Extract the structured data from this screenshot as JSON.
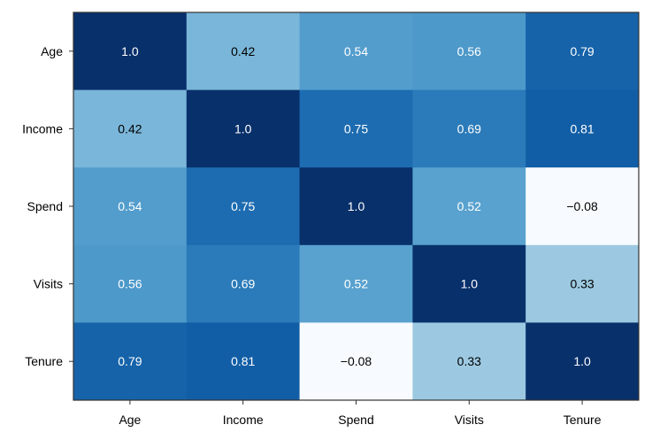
{
  "chart_data": {
    "type": "heatmap",
    "title": "",
    "xlabel": "",
    "ylabel": "",
    "x_categories": [
      "Age",
      "Income",
      "Spend",
      "Visits",
      "Tenure"
    ],
    "y_categories": [
      "Age",
      "Income",
      "Spend",
      "Visits",
      "Tenure"
    ],
    "values": [
      [
        1.0,
        0.42,
        0.54,
        0.56,
        0.79
      ],
      [
        0.42,
        1.0,
        0.75,
        0.69,
        0.81
      ],
      [
        0.54,
        0.75,
        1.0,
        0.52,
        -0.08
      ],
      [
        0.56,
        0.69,
        0.52,
        1.0,
        0.33
      ],
      [
        0.79,
        0.81,
        -0.08,
        0.33,
        1.0
      ]
    ],
    "value_labels": [
      [
        "1.0",
        "0.42",
        "0.54",
        "0.56",
        "0.79"
      ],
      [
        "0.42",
        "1.0",
        "0.75",
        "0.69",
        "0.81"
      ],
      [
        "0.54",
        "0.75",
        "1.0",
        "0.52",
        "−0.08"
      ],
      [
        "0.56",
        "0.69",
        "0.52",
        "1.0",
        "0.33"
      ],
      [
        "0.79",
        "0.81",
        "−0.08",
        "0.33",
        "1.0"
      ]
    ],
    "colormap": "Blues",
    "color_range": [
      -0.08,
      1.0
    ],
    "colorbar": false,
    "grid": false
  }
}
